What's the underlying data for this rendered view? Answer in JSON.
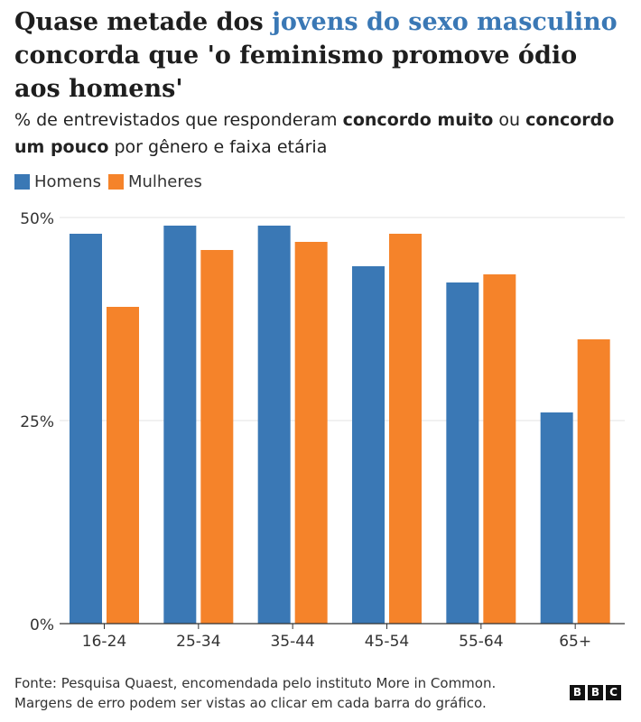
{
  "title": {
    "part1": "Quase metade dos ",
    "highlight": "jovens do sexo masculino",
    "part2": " concorda que 'o feminismo promove ódio aos homens'"
  },
  "subtitle": {
    "part1": "% de entrevistados que responderam ",
    "bold1": "concordo muito",
    "part2": " ou ",
    "bold2": "concordo um pouco",
    "part3": " por gênero e faixa etária"
  },
  "footer": {
    "line1": "Fonte: Pesquisa Quaest, encomendada pelo instituto More in Common.",
    "line2": "Margens de erro podem ser vistas ao clicar em cada barra do gráfico."
  },
  "logo": {
    "letters": [
      "B",
      "B",
      "C"
    ]
  },
  "colors": {
    "homens": "#3a78b5",
    "mulheres": "#f5832a",
    "highlight": "#3a78b5"
  },
  "chart_data": {
    "type": "bar",
    "categories": [
      "16-24",
      "25-34",
      "35-44",
      "45-54",
      "55-64",
      "65+"
    ],
    "series": [
      {
        "name": "Homens",
        "color": "#3a78b5",
        "values": [
          48,
          49,
          49,
          44,
          42,
          26
        ]
      },
      {
        "name": "Mulheres",
        "color": "#f5832a",
        "values": [
          39,
          46,
          47,
          48,
          43,
          35
        ]
      }
    ],
    "yticks": [
      0,
      25,
      50
    ],
    "ytick_labels": [
      "0%",
      "25%",
      "50%"
    ],
    "ylim": [
      0,
      50
    ],
    "grid": true,
    "legend": "top-left"
  }
}
